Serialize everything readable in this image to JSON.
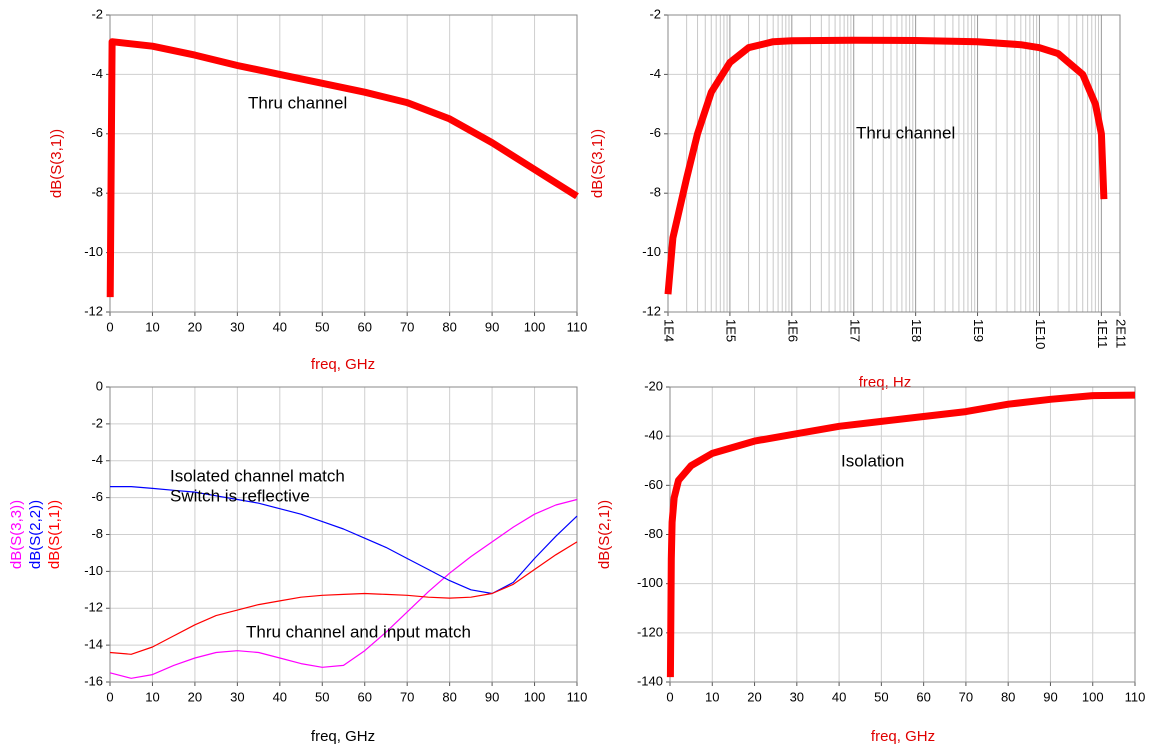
{
  "chart_data": [
    {
      "type": "line",
      "xscale": "linear",
      "grid": true,
      "axis_label_color": "#e00000",
      "x": [
        0.05,
        0.5,
        10,
        20,
        30,
        40,
        50,
        60,
        70,
        80,
        90,
        100,
        110
      ],
      "values": [
        -11.5,
        -2.9,
        -3.05,
        -3.35,
        -3.7,
        -4.0,
        -4.3,
        -4.6,
        -4.95,
        -5.5,
        -6.3,
        -7.2,
        -8.1
      ],
      "color": "#ff0000",
      "xlim": [
        0,
        110
      ],
      "ylim": [
        -12,
        -2
      ],
      "xticks": [
        0,
        10,
        20,
        30,
        40,
        50,
        60,
        70,
        80,
        90,
        100,
        110
      ],
      "yticks": [
        -12,
        -10,
        -8,
        -6,
        -4,
        -2
      ],
      "xlabel": "freq, GHz",
      "ylabel": "dB(S(3,1))",
      "annotations": [
        "Thru channel"
      ]
    },
    {
      "type": "line",
      "xscale": "log",
      "grid": true,
      "axis_label_color": "#e00000",
      "x": [
        10000,
        12000,
        20000,
        30000,
        50000,
        100000,
        200000,
        500000,
        1000000,
        10000000,
        100000000,
        1000000000,
        5000000000,
        10000000000,
        20000000000,
        50000000000,
        80000000000,
        100000000000,
        110000000000
      ],
      "values": [
        -11.4,
        -9.5,
        -7.5,
        -6.0,
        -4.6,
        -3.6,
        -3.1,
        -2.9,
        -2.87,
        -2.85,
        -2.86,
        -2.9,
        -3.0,
        -3.1,
        -3.3,
        -4.0,
        -5.0,
        -6.0,
        -8.2
      ],
      "color": "#ff0000",
      "xlim": [
        10000,
        200000000000
      ],
      "ylim": [
        -12,
        -2
      ],
      "xticks": [
        {
          "value": 10000,
          "label": "1E4"
        },
        {
          "value": 100000,
          "label": "1E5"
        },
        {
          "value": 1000000,
          "label": "1E6"
        },
        {
          "value": 10000000,
          "label": "1E7"
        },
        {
          "value": 100000000,
          "label": "1E8"
        },
        {
          "value": 1000000000,
          "label": "1E9"
        },
        {
          "value": 10000000000,
          "label": "1E10"
        },
        {
          "value": 100000000000,
          "label": "1E11"
        },
        {
          "value": 200000000000,
          "label": "2E11"
        }
      ],
      "yticks": [
        -12,
        -10,
        -8,
        -6,
        -4,
        -2
      ],
      "xlabel": "freq, Hz",
      "ylabel": "dB(S(3,1))",
      "annotations": [
        "Thru channel"
      ]
    },
    {
      "type": "line",
      "xscale": "linear",
      "grid": true,
      "axis_label_color": "#000000",
      "x": [
        0,
        5,
        10,
        15,
        20,
        25,
        30,
        35,
        40,
        45,
        50,
        55,
        60,
        65,
        70,
        75,
        80,
        85,
        90,
        95,
        100,
        105,
        110
      ],
      "series": [
        {
          "name": "dB(S(3,3))",
          "color": "#ff00ff",
          "values": [
            -15.5,
            -15.8,
            -15.6,
            -15.1,
            -14.7,
            -14.4,
            -14.3,
            -14.4,
            -14.7,
            -15.0,
            -15.2,
            -15.1,
            -14.3,
            -13.3,
            -12.2,
            -11.1,
            -10.1,
            -9.2,
            -8.4,
            -7.6,
            -6.9,
            -6.4,
            -6.1
          ]
        },
        {
          "name": "dB(S(2,2))",
          "color": "#0000ff",
          "values": [
            -5.4,
            -5.4,
            -5.5,
            -5.6,
            -5.7,
            -5.9,
            -6.1,
            -6.3,
            -6.6,
            -6.9,
            -7.3,
            -7.7,
            -8.2,
            -8.7,
            -9.3,
            -9.9,
            -10.5,
            -11.0,
            -11.2,
            -10.6,
            -9.3,
            -8.1,
            -7.0
          ]
        },
        {
          "name": "dB(S(1,1))",
          "color": "#ff0000",
          "values": [
            -14.4,
            -14.5,
            -14.1,
            -13.5,
            -12.9,
            -12.4,
            -12.1,
            -11.8,
            -11.6,
            -11.4,
            -11.3,
            -11.25,
            -11.2,
            -11.25,
            -11.3,
            -11.4,
            -11.45,
            -11.4,
            -11.2,
            -10.7,
            -9.9,
            -9.1,
            -8.4
          ]
        }
      ],
      "xlim": [
        0,
        110
      ],
      "ylim": [
        -16,
        0
      ],
      "xticks": [
        0,
        10,
        20,
        30,
        40,
        50,
        60,
        70,
        80,
        90,
        100,
        110
      ],
      "yticks": [
        -16,
        -14,
        -12,
        -10,
        -8,
        -6,
        -4,
        -2,
        0
      ],
      "xlabel": "freq, GHz",
      "annotations": [
        "Isolated channel match",
        "Switch is reflective",
        "Thru channel and input match"
      ]
    },
    {
      "type": "line",
      "xscale": "linear",
      "grid": true,
      "axis_label_color": "#e00000",
      "x": [
        0.1,
        0.3,
        0.5,
        1,
        2,
        5,
        10,
        20,
        30,
        40,
        50,
        60,
        70,
        80,
        90,
        100,
        110
      ],
      "values": [
        -138,
        -90,
        -75,
        -65,
        -58,
        -52,
        -47,
        -42,
        -39,
        -36,
        -34,
        -32,
        -30,
        -27,
        -25,
        -23.5,
        -23.3
      ],
      "color": "#ff0000",
      "xlim": [
        0,
        110
      ],
      "ylim": [
        -140,
        -20
      ],
      "xticks": [
        0,
        10,
        20,
        30,
        40,
        50,
        60,
        70,
        80,
        90,
        100,
        110
      ],
      "yticks": [
        -140,
        -120,
        -100,
        -80,
        -60,
        -40,
        -20
      ],
      "xlabel": "freq, GHz",
      "ylabel": "dB(S(2,1))",
      "annotations": [
        "Isolation"
      ]
    }
  ]
}
